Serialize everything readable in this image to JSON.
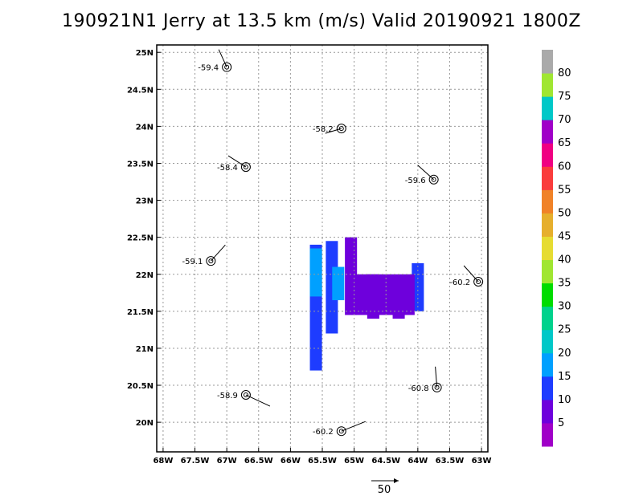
{
  "chart_data": {
    "type": "heatmap",
    "title": "190921N1 Jerry at 13.5 km (m/s) Valid 20190921  1800Z",
    "xlim": [
      -68.1,
      -62.9
    ],
    "ylim": [
      19.6,
      25.1
    ],
    "x_ticks": [
      {
        "value": -68,
        "label": "68W"
      },
      {
        "value": -67.5,
        "label": "67.5W"
      },
      {
        "value": -67,
        "label": "67W"
      },
      {
        "value": -66.5,
        "label": "66.5W"
      },
      {
        "value": -66,
        "label": "66W"
      },
      {
        "value": -65.5,
        "label": "65.5W"
      },
      {
        "value": -65,
        "label": "65W"
      },
      {
        "value": -64.5,
        "label": "64.5W"
      },
      {
        "value": -64,
        "label": "64W"
      },
      {
        "value": -63.5,
        "label": "63.5W"
      },
      {
        "value": -63,
        "label": "63W"
      }
    ],
    "y_ticks": [
      {
        "value": 20,
        "label": "20N"
      },
      {
        "value": 20.5,
        "label": "20.5N"
      },
      {
        "value": 21,
        "label": "21N"
      },
      {
        "value": 21.5,
        "label": "21.5N"
      },
      {
        "value": 22,
        "label": "22N"
      },
      {
        "value": 22.5,
        "label": "22.5N"
      },
      {
        "value": 23,
        "label": "23N"
      },
      {
        "value": 23.5,
        "label": "23.5N"
      },
      {
        "value": 24,
        "label": "24N"
      },
      {
        "value": 24.5,
        "label": "24.5N"
      },
      {
        "value": 25,
        "label": "25N"
      }
    ],
    "grid": true,
    "colorbar": {
      "labels": [
        "5",
        "10",
        "15",
        "20",
        "25",
        "30",
        "35",
        "40",
        "45",
        "50",
        "55",
        "60",
        "65",
        "70",
        "75",
        "80"
      ],
      "colors": [
        "#a000c8",
        "#6e00dc",
        "#1e3cff",
        "#00a0ff",
        "#00c8c8",
        "#00d28c",
        "#00dc00",
        "#a0e632",
        "#e6dc32",
        "#e6af2d",
        "#f08228",
        "#fa3c3c",
        "#f00082",
        "#a000c8",
        "#00c8c8",
        "#a0e632",
        "#aaaaaa"
      ]
    },
    "observations": [
      {
        "lon": -67.0,
        "lat": 24.8,
        "label": "-59.4"
      },
      {
        "lon": -65.2,
        "lat": 23.97,
        "label": "-58.2"
      },
      {
        "lon": -66.7,
        "lat": 23.45,
        "label": "-58.4"
      },
      {
        "lon": -63.75,
        "lat": 23.28,
        "label": "-59.6"
      },
      {
        "lon": -67.25,
        "lat": 22.18,
        "label": "-59.1"
      },
      {
        "lon": -63.05,
        "lat": 21.9,
        "label": "-60.2"
      },
      {
        "lon": -63.7,
        "lat": 20.47,
        "label": "-60.8"
      },
      {
        "lon": -66.7,
        "lat": 20.37,
        "label": "-58.9"
      },
      {
        "lon": -65.2,
        "lat": 19.88,
        "label": "-60.2"
      }
    ],
    "reference_vector": {
      "label": "50"
    },
    "wind_field": [
      {
        "lon": -65.6,
        "lat_min": 20.7,
        "lat_max": 22.4,
        "speed": 10
      },
      {
        "lon": -65.35,
        "lat_min": 21.2,
        "lat_max": 22.45,
        "speed": 10
      },
      {
        "lon": -65.6,
        "lat_min": 21.7,
        "lat_max": 22.35,
        "speed": 17
      },
      {
        "lon": -65.25,
        "lat_min": 21.65,
        "lat_max": 22.1,
        "speed": 17
      },
      {
        "lon": -65.05,
        "lat_min": 21.45,
        "lat_max": 22.5,
        "speed": 5
      },
      {
        "lon": -64.7,
        "lat_min": 21.4,
        "lat_max": 22.0,
        "speed": 6
      },
      {
        "lon": -64.3,
        "lat_min": 21.4,
        "lat_max": 21.95,
        "speed": 5
      },
      {
        "lon": -64.0,
        "lat_min": 21.5,
        "lat_max": 22.15,
        "speed": 10
      }
    ]
  }
}
